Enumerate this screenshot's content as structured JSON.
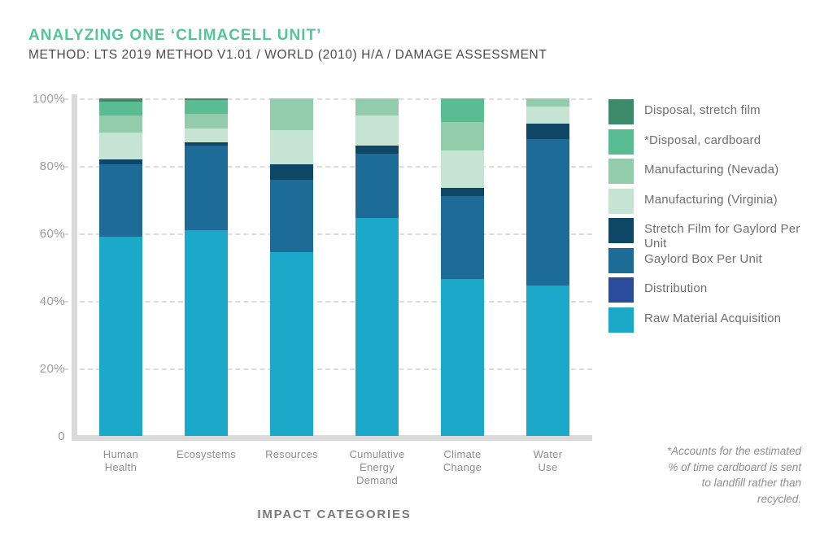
{
  "header": {
    "title": "ANALYZING ONE ‘CLIMACELL UNIT’",
    "subtitle": "METHOD: LTS 2019 METHOD V1.01 / WORLD (2010) H/A / DAMAGE ASSESSMENT"
  },
  "chart_data": {
    "type": "bar",
    "stacked": true,
    "percent_stacked": true,
    "title": "ANALYZING ONE ‘CLIMACELL UNIT’",
    "xlabel": "IMPACT CATEGORIES",
    "ylabel": "",
    "ylim": [
      0,
      100
    ],
    "grid": "horizontal dashed",
    "legend_position": "right",
    "yticks": [
      {
        "value": 100,
        "label": "100%"
      },
      {
        "value": 80,
        "label": "80%"
      },
      {
        "value": 60,
        "label": "60%"
      },
      {
        "value": 40,
        "label": "40%"
      },
      {
        "value": 20,
        "label": "20%"
      },
      {
        "value": 0,
        "label": "0"
      }
    ],
    "categories": [
      "Human Health",
      "Ecosystems",
      "Resources",
      "Cumulative Energy Demand",
      "Climate Change",
      "Water Use"
    ],
    "category_display_lines": [
      [
        "Human",
        "Health"
      ],
      [
        "Ecosystems"
      ],
      [
        "Resources"
      ],
      [
        "Cumulative",
        "Energy",
        "Demand"
      ],
      [
        "Climate",
        "Change"
      ],
      [
        "Water",
        "Use"
      ]
    ],
    "series": [
      {
        "name": "Raw Material Acquisition",
        "color": "#1ba8c9",
        "values": [
          59,
          61,
          54.5,
          64.5,
          46.5,
          44.5
        ]
      },
      {
        "name": "Distribution",
        "color": "#2b4b9b",
        "values": [
          0,
          0,
          0,
          0,
          0,
          0
        ]
      },
      {
        "name": "Gaylord Box Per Unit",
        "color": "#1d6b97",
        "values": [
          21.5,
          25,
          21.5,
          19,
          24.5,
          43.5
        ]
      },
      {
        "name": "Stretch Film for Gaylord Per Unit",
        "color": "#0e4666",
        "values": [
          1.5,
          1,
          4.5,
          2.5,
          2.5,
          4.5
        ]
      },
      {
        "name": "Manufacturing (Virginia)",
        "color": "#c6e4d4",
        "values": [
          8,
          4,
          10,
          9,
          11,
          5
        ]
      },
      {
        "name": "Manufacturing (Nevada)",
        "color": "#92ccab",
        "values": [
          5,
          4.5,
          9.5,
          5,
          8.5,
          2.5
        ]
      },
      {
        "name": "*Disposal, cardboard",
        "color": "#5abd92",
        "values": [
          4,
          4,
          0,
          0,
          7,
          0
        ]
      },
      {
        "name": "Disposal, stretch film",
        "color": "#3f8a6b",
        "values": [
          1,
          0.5,
          0,
          0,
          0,
          0
        ]
      }
    ]
  },
  "legend": {
    "items": [
      {
        "label": "Disposal, stretch film",
        "color": "#3f8a6b"
      },
      {
        "label": "*Disposal, cardboard",
        "color": "#5abd92"
      },
      {
        "label": "Manufacturing (Nevada)",
        "color": "#92ccab"
      },
      {
        "label": "Manufacturing (Virginia)",
        "color": "#c6e4d4"
      },
      {
        "label": "Stretch Film for Gaylord Per Unit",
        "color": "#0e4666"
      },
      {
        "label": "Gaylord Box Per Unit",
        "color": "#1d6b97"
      },
      {
        "label": "Distribution",
        "color": "#2b4b9b"
      },
      {
        "label": "Raw Material Acquisition",
        "color": "#1ba8c9"
      }
    ]
  },
  "footnote": {
    "text": "*Accounts for the estimated % of time cardboard is sent to landfill rather than recycled."
  },
  "colors": {
    "title_accent": "#56c49a",
    "subtitle_text": "#4d4d4d",
    "axis_line": "#d9d9d9",
    "gridline": "#dcdcdc",
    "tick_text": "#9c9c9c",
    "legend_text": "#6e6e6e"
  }
}
